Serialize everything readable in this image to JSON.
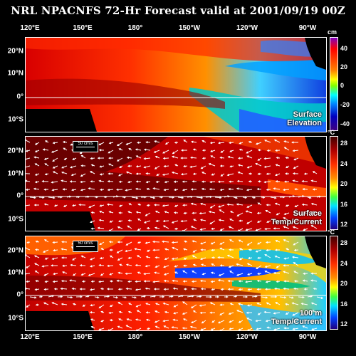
{
  "title": "NRL NPACNFS 72-Hr Forecast valid at 2001/09/19 00Z",
  "longitude_labels": [
    "120°E",
    "150°E",
    "180°",
    "150°W",
    "120°W",
    "90°W"
  ],
  "latitude_labels": [
    "20°N",
    "10°N",
    "0°",
    "10°S"
  ],
  "panels": [
    {
      "label_line1": "Surface",
      "label_line2": "Elevation",
      "unit": "cm",
      "colorbar_ticks": [
        "40",
        "20",
        "0",
        "-20",
        "-40"
      ],
      "current_vectors": false
    },
    {
      "label_line1": "Surface",
      "label_line2": "Temp/Current",
      "unit": "°C",
      "colorbar_ticks": [
        "28",
        "24",
        "20",
        "16",
        "12"
      ],
      "current_vectors": true,
      "reference_vector_label": "50 cm/s"
    },
    {
      "label_line1": "100 m",
      "label_line2": "Temp/Current",
      "unit": "°C",
      "colorbar_ticks": [
        "28",
        "24",
        "20",
        "16",
        "12"
      ],
      "current_vectors": true,
      "reference_vector_label": "50 cm/s"
    }
  ],
  "colors": {
    "land": "#000000",
    "colormap": [
      "#2a0000",
      "#8b0000",
      "#e00000",
      "#ff6000",
      "#ffc000",
      "#ffff00",
      "#b0ff00",
      "#00e060",
      "#00e0e0",
      "#0090ff",
      "#0020d0",
      "#2000a0",
      "#8000c0"
    ]
  }
}
